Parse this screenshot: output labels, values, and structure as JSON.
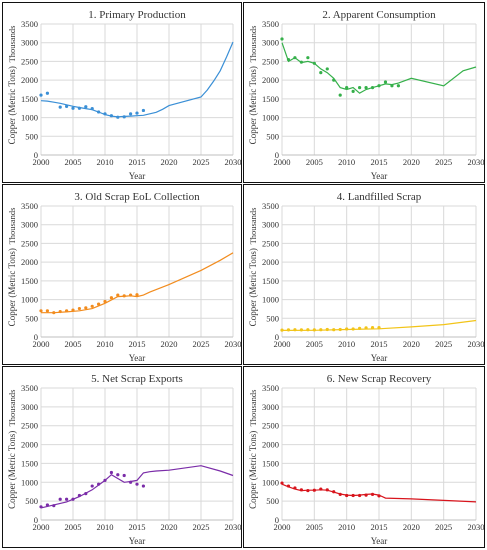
{
  "chart_data": [
    {
      "type": "line",
      "title": "1. Primary Production",
      "xlabel": "Year",
      "ylabel": "Copper (Metric Tons)",
      "yunit": "Thousands",
      "xlim": [
        2000,
        2030
      ],
      "ylim": [
        0,
        3500
      ],
      "xticks": [
        2000,
        2005,
        2010,
        2015,
        2020,
        2025,
        2030
      ],
      "yticks": [
        0,
        500,
        1000,
        1500,
        2000,
        2500,
        3000,
        3500
      ],
      "color": "#3a8fd6",
      "series": [
        {
          "kind": "line",
          "x": [
            2000,
            2001,
            2002,
            2003,
            2004,
            2005,
            2006,
            2007,
            2008,
            2009,
            2010,
            2011,
            2012,
            2013,
            2014,
            2015,
            2016,
            2017,
            2018,
            2019,
            2020,
            2025,
            2026,
            2027,
            2028,
            2029,
            2030
          ],
          "y": [
            1450,
            1440,
            1410,
            1380,
            1340,
            1300,
            1270,
            1240,
            1210,
            1150,
            1080,
            1040,
            1020,
            1030,
            1040,
            1050,
            1060,
            1100,
            1140,
            1220,
            1320,
            1550,
            1740,
            1980,
            2250,
            2620,
            3020
          ]
        },
        {
          "kind": "scatter",
          "x": [
            2000,
            2001,
            2003,
            2004,
            2005,
            2006,
            2007,
            2008,
            2009,
            2010,
            2011,
            2012,
            2013,
            2014,
            2015,
            2016
          ],
          "y": [
            1600,
            1650,
            1280,
            1300,
            1250,
            1250,
            1290,
            1240,
            1150,
            1100,
            1050,
            1010,
            1020,
            1100,
            1120,
            1190
          ]
        }
      ]
    },
    {
      "type": "line",
      "title": "2. Apparent Consumption",
      "xlabel": "Year",
      "ylabel": "Copper (Metric Tons)",
      "yunit": "Thousands",
      "xlim": [
        2000,
        2030
      ],
      "ylim": [
        0,
        3500
      ],
      "xticks": [
        2000,
        2005,
        2010,
        2015,
        2020,
        2025,
        2030
      ],
      "yticks": [
        0,
        500,
        1000,
        1500,
        2000,
        2500,
        3000,
        3500
      ],
      "color": "#35b04a",
      "series": [
        {
          "kind": "line",
          "x": [
            2000,
            2001,
            2002,
            2003,
            2004,
            2005,
            2006,
            2007,
            2008,
            2009,
            2010,
            2011,
            2012,
            2013,
            2014,
            2015,
            2016,
            2017,
            2018,
            2020,
            2025,
            2028,
            2030
          ],
          "y": [
            3000,
            2500,
            2600,
            2470,
            2500,
            2450,
            2300,
            2200,
            2050,
            1800,
            1750,
            1800,
            1650,
            1750,
            1800,
            1850,
            1900,
            1880,
            1920,
            2050,
            1850,
            2250,
            2350
          ]
        },
        {
          "kind": "scatter",
          "x": [
            2000,
            2001,
            2002,
            2003,
            2004,
            2005,
            2006,
            2007,
            2008,
            2009,
            2010,
            2011,
            2012,
            2013,
            2014,
            2015,
            2016,
            2017,
            2018
          ],
          "y": [
            3100,
            2550,
            2600,
            2480,
            2600,
            2450,
            2200,
            2300,
            2000,
            1600,
            1800,
            1700,
            1800,
            1800,
            1800,
            1850,
            1950,
            1850,
            1850
          ]
        }
      ]
    },
    {
      "type": "line",
      "title": "3. Old Scrap EoL Collection",
      "xlabel": "Year",
      "ylabel": "Copper (Metric Tons)",
      "yunit": "Thousands",
      "xlim": [
        2000,
        2030
      ],
      "ylim": [
        0,
        3500
      ],
      "xticks": [
        2000,
        2005,
        2010,
        2015,
        2020,
        2025,
        2030
      ],
      "yticks": [
        0,
        500,
        1000,
        1500,
        2000,
        2500,
        3000,
        3500
      ],
      "color": "#f28c1e",
      "series": [
        {
          "kind": "line",
          "x": [
            2000,
            2002,
            2004,
            2006,
            2008,
            2010,
            2012,
            2014,
            2015,
            2016,
            2017,
            2020,
            2025,
            2028,
            2030
          ],
          "y": [
            650,
            650,
            670,
            700,
            760,
            900,
            1080,
            1100,
            1080,
            1120,
            1200,
            1400,
            1780,
            2050,
            2250
          ]
        },
        {
          "kind": "scatter",
          "x": [
            2000,
            2001,
            2002,
            2003,
            2004,
            2005,
            2006,
            2007,
            2008,
            2009,
            2010,
            2011,
            2012,
            2013,
            2014,
            2015
          ],
          "y": [
            700,
            700,
            650,
            680,
            700,
            720,
            760,
            780,
            820,
            880,
            950,
            1050,
            1120,
            1100,
            1120,
            1130
          ]
        }
      ]
    },
    {
      "type": "line",
      "title": "4. Landfilled Scrap",
      "xlabel": "Year",
      "ylabel": "Copper (Metric Tons)",
      "yunit": "Thousands",
      "xlim": [
        2000,
        2030
      ],
      "ylim": [
        0,
        3500
      ],
      "xticks": [
        2000,
        2005,
        2010,
        2015,
        2020,
        2025,
        2030
      ],
      "yticks": [
        0,
        500,
        1000,
        1500,
        2000,
        2500,
        3000,
        3500
      ],
      "color": "#f2c418",
      "series": [
        {
          "kind": "line",
          "x": [
            2000,
            2005,
            2010,
            2015,
            2020,
            2025,
            2030
          ],
          "y": [
            175,
            180,
            200,
            220,
            270,
            330,
            440
          ]
        },
        {
          "kind": "scatter",
          "x": [
            2000,
            2001,
            2002,
            2003,
            2004,
            2005,
            2006,
            2007,
            2008,
            2009,
            2010,
            2011,
            2012,
            2013,
            2014,
            2015
          ],
          "y": [
            185,
            190,
            195,
            190,
            195,
            190,
            195,
            200,
            195,
            200,
            215,
            215,
            230,
            245,
            250,
            250
          ]
        }
      ]
    },
    {
      "type": "line",
      "title": "5. Net Scrap Exports",
      "xlabel": "Year",
      "ylabel": "Copper (Metric Tons)",
      "yunit": "Thousands",
      "xlim": [
        2000,
        2030
      ],
      "ylim": [
        0,
        3500
      ],
      "xticks": [
        2000,
        2005,
        2010,
        2015,
        2020,
        2025,
        2030
      ],
      "yticks": [
        0,
        500,
        1000,
        1500,
        2000,
        2500,
        3000,
        3500
      ],
      "color": "#7a2ca8",
      "series": [
        {
          "kind": "line",
          "x": [
            2000,
            2002,
            2004,
            2006,
            2008,
            2010,
            2011,
            2012,
            2013,
            2014,
            2015,
            2016,
            2017,
            2018,
            2020,
            2025,
            2028,
            2030
          ],
          "y": [
            320,
            400,
            480,
            620,
            800,
            1050,
            1200,
            1100,
            1000,
            1020,
            1050,
            1250,
            1280,
            1300,
            1320,
            1440,
            1300,
            1180
          ]
        },
        {
          "kind": "scatter",
          "x": [
            2000,
            2001,
            2002,
            2003,
            2004,
            2005,
            2006,
            2007,
            2008,
            2009,
            2010,
            2011,
            2012,
            2013,
            2014,
            2015,
            2016
          ],
          "y": [
            350,
            400,
            380,
            550,
            550,
            550,
            650,
            700,
            900,
            950,
            1050,
            1260,
            1200,
            1180,
            1000,
            950,
            900
          ]
        }
      ]
    },
    {
      "type": "line",
      "title": "6. New Scrap Recovery",
      "xlabel": "Year",
      "ylabel": "Copper (Metric Tons)",
      "yunit": "Thousands",
      "xlim": [
        2000,
        2030
      ],
      "ylim": [
        0,
        3500
      ],
      "xticks": [
        2000,
        2005,
        2010,
        2015,
        2020,
        2025,
        2030
      ],
      "yticks": [
        0,
        500,
        1000,
        1500,
        2000,
        2500,
        3000,
        3500
      ],
      "color": "#d8141c",
      "series": [
        {
          "kind": "line",
          "x": [
            2000,
            2001,
            2002,
            2003,
            2004,
            2005,
            2006,
            2007,
            2008,
            2009,
            2010,
            2011,
            2012,
            2013,
            2014,
            2015,
            2016,
            2020,
            2025,
            2030
          ],
          "y": [
            950,
            880,
            820,
            780,
            790,
            790,
            800,
            790,
            740,
            690,
            660,
            650,
            660,
            680,
            690,
            660,
            580,
            560,
            520,
            480
          ]
        },
        {
          "kind": "scatter",
          "x": [
            2000,
            2001,
            2002,
            2003,
            2004,
            2005,
            2006,
            2007,
            2008,
            2009,
            2010,
            2011,
            2012,
            2013,
            2014,
            2015
          ],
          "y": [
            980,
            900,
            850,
            800,
            780,
            790,
            820,
            800,
            750,
            680,
            650,
            650,
            650,
            660,
            680,
            640
          ]
        }
      ]
    }
  ]
}
